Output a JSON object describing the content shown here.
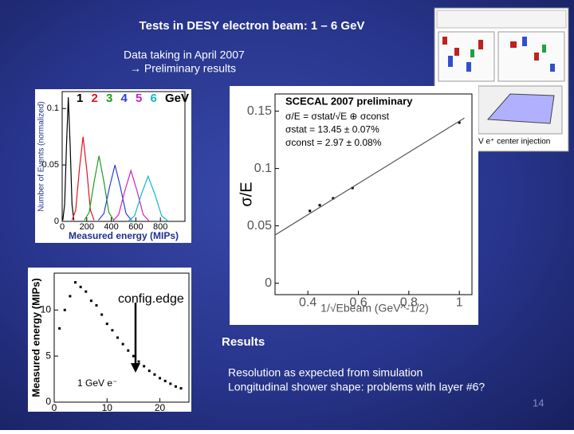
{
  "slide": {
    "title": "Tests in DESY electron beam: 1 – 6 GeV",
    "subtitle": "Data taking in April 2007",
    "subtitle_line2": "→ Preliminary results",
    "results_heading": "Results",
    "results_lines": [
      "Resolution as expected from simulation",
      "Longitudinal shower shape: problems with layer #6?"
    ],
    "page_number": "14",
    "event_display_caption": "V e⁺ center injection"
  },
  "chart_data": [
    {
      "type": "line",
      "y_label": "Number of Events (normalized)",
      "x_label": "Measured energy (MIPs)",
      "legend_unit": "GeV",
      "xlim": [
        0,
        1000
      ],
      "ylim": [
        0,
        0.115
      ],
      "xticks": [
        0,
        200,
        400,
        600,
        800
      ],
      "yticks": [
        0,
        0.05,
        0.1
      ],
      "series": [
        {
          "name": "1",
          "color": "#000000",
          "x": [
            5,
            20,
            35,
            50,
            65,
            80,
            95
          ],
          "values": [
            0.001,
            0.015,
            0.067,
            0.11,
            0.067,
            0.015,
            0.001
          ]
        },
        {
          "name": "2",
          "color": "#e0141e",
          "x": [
            80,
            110,
            140,
            170,
            200,
            230,
            260
          ],
          "values": [
            0.001,
            0.01,
            0.046,
            0.075,
            0.046,
            0.01,
            0.001
          ]
        },
        {
          "name": "3",
          "color": "#1aa01a",
          "x": [
            180,
            220,
            260,
            300,
            340,
            380,
            420
          ],
          "values": [
            0.001,
            0.008,
            0.035,
            0.058,
            0.035,
            0.008,
            0.001
          ]
        },
        {
          "name": "4",
          "color": "#2a3fd0",
          "x": [
            295,
            340,
            385,
            430,
            475,
            520,
            565
          ],
          "values": [
            0.001,
            0.007,
            0.03,
            0.05,
            0.03,
            0.007,
            0.001
          ]
        },
        {
          "name": "5",
          "color": "#d020c0",
          "x": [
            410,
            460,
            510,
            560,
            610,
            660,
            710
          ],
          "values": [
            0,
            0.006,
            0.027,
            0.045,
            0.027,
            0.006,
            0
          ]
        },
        {
          "name": "6",
          "color": "#10b8c8",
          "x": [
            535,
            590,
            645,
            700,
            755,
            810,
            865
          ],
          "values": [
            0,
            0.005,
            0.024,
            0.04,
            0.024,
            0.005,
            0
          ]
        }
      ]
    },
    {
      "type": "scatter",
      "y_label": "Measured energy (MIPs)",
      "annotations": [
        "config.edge",
        "1 GeV e⁻"
      ],
      "xlim": [
        0,
        25.5
      ],
      "ylim": [
        0,
        14
      ],
      "xticks": [
        0,
        10,
        20
      ],
      "yticks": [
        0,
        5,
        10
      ],
      "series": [
        {
          "color": "#000000",
          "x": [
            1,
            2,
            3,
            4,
            5,
            6,
            7,
            8,
            9,
            10,
            11,
            12,
            13,
            14,
            15,
            16,
            17,
            18,
            19,
            20,
            21,
            22,
            23,
            24
          ],
          "values": [
            8,
            10,
            11.5,
            13,
            12.5,
            12,
            11,
            10.5,
            9.5,
            8.5,
            7.8,
            7,
            6.3,
            5.6,
            5,
            4.4,
            3.9,
            3.4,
            3,
            2.6,
            2.3,
            2,
            1.7,
            1.5
          ]
        }
      ]
    },
    {
      "type": "scatter",
      "title": "SCECAL 2007 preliminary",
      "annotations": [
        "σ/E = σstat/√E ⊕ σconst",
        "σstat   = 13.45 ± 0.07%",
        "σconst = 2.97 ± 0.08%"
      ],
      "y_label": "σ/E",
      "x_label": "1/√Ebeam (GeV^-1/2)",
      "xlim": [
        0.27,
        1.05
      ],
      "ylim": [
        -0.01,
        0.165
      ],
      "xticks": [
        0.4,
        0.6,
        0.8,
        1
      ],
      "yticks": [
        0,
        0.05,
        0.1,
        0.15
      ],
      "series": [
        {
          "color": "#000000",
          "x": [
            0.408,
            0.447,
            0.5,
            0.577,
            1
          ],
          "values": [
            0.063,
            0.068,
            0.074,
            0.083,
            0.14
          ]
        },
        {
          "color": "#555555",
          "draw": "line",
          "x": [
            0.27,
            1.02
          ],
          "values": [
            0.042,
            0.144
          ]
        }
      ]
    }
  ]
}
